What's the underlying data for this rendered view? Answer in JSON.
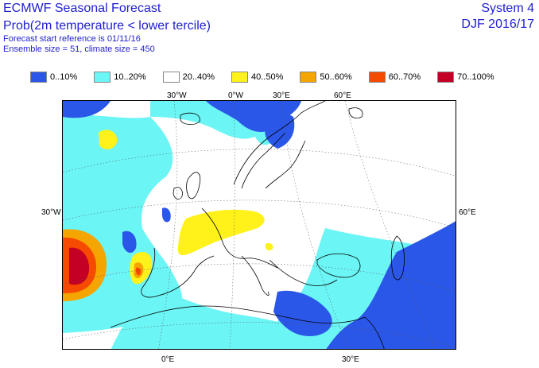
{
  "header": {
    "title": "ECMWF Seasonal Forecast",
    "subtitle": "Prob(2m temperature < lower tercile)",
    "start_reference": "Forecast start reference is 01/11/16",
    "ensemble": "Ensemble size = 51, climate size = 450",
    "system": "System 4",
    "period": "DJF 2016/17"
  },
  "legend": [
    {
      "label": "0..10%",
      "color": "#2b57e8"
    },
    {
      "label": "10..20%",
      "color": "#6cf5f5"
    },
    {
      "label": "20..40%",
      "color": "#ffffff"
    },
    {
      "label": "40..50%",
      "color": "#fff21a"
    },
    {
      "label": "50..60%",
      "color": "#f5a500"
    },
    {
      "label": "60..70%",
      "color": "#f54a00"
    },
    {
      "label": "70..100%",
      "color": "#c40024"
    }
  ],
  "map": {
    "top_ticks": [
      "30°W",
      "0°W",
      "30°E",
      "60°E"
    ],
    "left_ticks": [
      "30°W"
    ],
    "right_ticks": [
      "60°E"
    ],
    "bottom_ticks": [
      "0°E",
      "30°E"
    ]
  }
}
